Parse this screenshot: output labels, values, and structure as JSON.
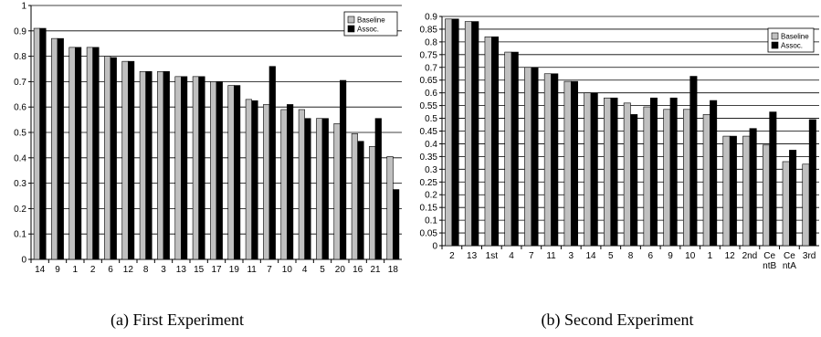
{
  "colors": {
    "baseline": "#c0c0c0",
    "assoc": "#000000"
  },
  "chart_data": [
    {
      "type": "bar",
      "caption": "(a) First Experiment",
      "categories": [
        "14",
        "9",
        "1",
        "2",
        "6",
        "12",
        "8",
        "3",
        "13",
        "15",
        "17",
        "19",
        "11",
        "7",
        "10",
        "4",
        "5",
        "20",
        "16",
        "21",
        "18"
      ],
      "series": [
        {
          "name": "Baseline",
          "values": [
            0.91,
            0.87,
            0.835,
            0.835,
            0.8,
            0.78,
            0.74,
            0.74,
            0.72,
            0.72,
            0.7,
            0.685,
            0.63,
            0.61,
            0.59,
            0.59,
            0.555,
            0.535,
            0.495,
            0.445,
            0.405
          ]
        },
        {
          "name": "Assoc.",
          "values": [
            0.91,
            0.87,
            0.835,
            0.835,
            0.795,
            0.78,
            0.74,
            0.74,
            0.72,
            0.72,
            0.7,
            0.685,
            0.625,
            0.76,
            0.61,
            0.555,
            0.555,
            0.705,
            0.465,
            0.555,
            0.275
          ]
        }
      ],
      "ylim": [
        0,
        1
      ],
      "yticks": [
        "0",
        "0.1",
        "0.2",
        "0.3",
        "0.4",
        "0.5",
        "0.6",
        "0.7",
        "0.8",
        "0.9",
        "1"
      ],
      "grid": true,
      "legend": "top-right"
    },
    {
      "type": "bar",
      "caption": "(b) Second Experiment",
      "categories": [
        "2",
        "13",
        "1st",
        "4",
        "7",
        "11",
        "3",
        "14",
        "5",
        "8",
        "6",
        "9",
        "10",
        "1",
        "12",
        "2nd",
        "Ce ntB",
        "Ce ntA",
        "3rd"
      ],
      "series": [
        {
          "name": "Baseline",
          "values": [
            0.89,
            0.88,
            0.82,
            0.76,
            0.7,
            0.675,
            0.645,
            0.6,
            0.58,
            0.56,
            0.545,
            0.535,
            0.535,
            0.515,
            0.43,
            0.43,
            0.395,
            0.33,
            0.32
          ]
        },
        {
          "name": "Assoc.",
          "values": [
            0.89,
            0.88,
            0.82,
            0.76,
            0.7,
            0.675,
            0.645,
            0.6,
            0.58,
            0.515,
            0.58,
            0.58,
            0.665,
            0.57,
            0.43,
            0.46,
            0.525,
            0.375,
            0.495
          ]
        }
      ],
      "ylim": [
        0,
        0.9
      ],
      "yticks": [
        "0",
        "0.05",
        "0.1",
        "0.15",
        "0.2",
        "0.25",
        "0.3",
        "0.35",
        "0.4",
        "0.45",
        "0.5",
        "0.55",
        "0.6",
        "0.65",
        "0.7",
        "0.75",
        "0.8",
        "0.85",
        "0.9"
      ],
      "grid": true,
      "legend": "top-right"
    }
  ]
}
